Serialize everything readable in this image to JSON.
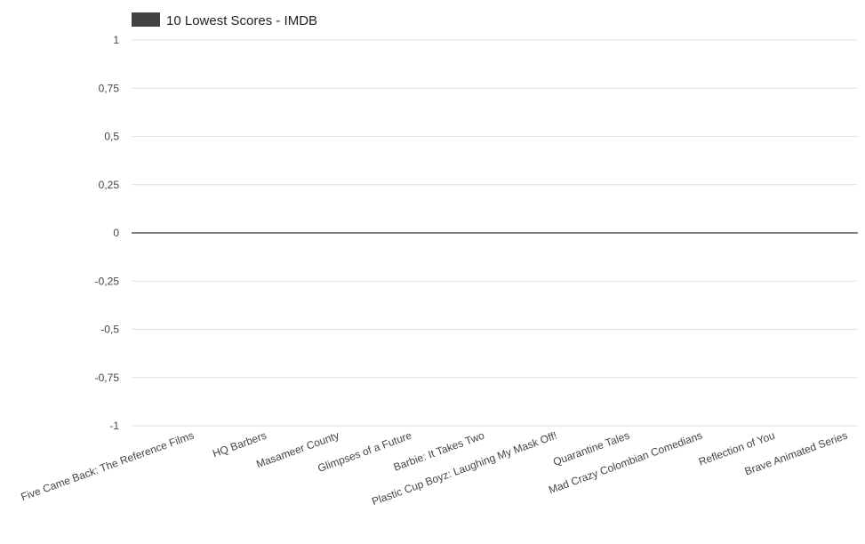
{
  "chart_data": {
    "type": "bar",
    "legend": {
      "position": "top-left",
      "label": "10 Lowest Scores - IMDB",
      "color": "#424242"
    },
    "categories": [
      "Five Came Back: The Reference Films",
      "HQ Barbers",
      "Masameer County",
      "Glimpses of a Future",
      "Barbie: It Takes Two",
      "Plastic Cup Boyz: Laughing My Mask Off!",
      "Quarantine Tales",
      "Mad Crazy Colombian Comedians",
      "Reflection of You",
      "Brave Animated Series"
    ],
    "series": [
      {
        "name": "10 Lowest Scores - IMDB",
        "values": [
          0,
          0,
          0,
          0,
          0,
          0,
          0,
          0,
          0,
          0
        ]
      }
    ],
    "ylim": [
      -1,
      1
    ],
    "yticks": [
      1,
      0.75,
      0.5,
      0.25,
      0,
      -0.25,
      -0.5,
      -0.75,
      -1
    ],
    "ytick_labels": [
      "1",
      "0,75",
      "0,5",
      "0,25",
      "0",
      "-0,25",
      "-0,5",
      "-0,75",
      "-1"
    ],
    "grid": true,
    "xlabel": "",
    "ylabel": "",
    "title": "",
    "colors": {
      "gridline": "#e0e0e0",
      "baseline": "#333333",
      "series": "#424242"
    }
  }
}
